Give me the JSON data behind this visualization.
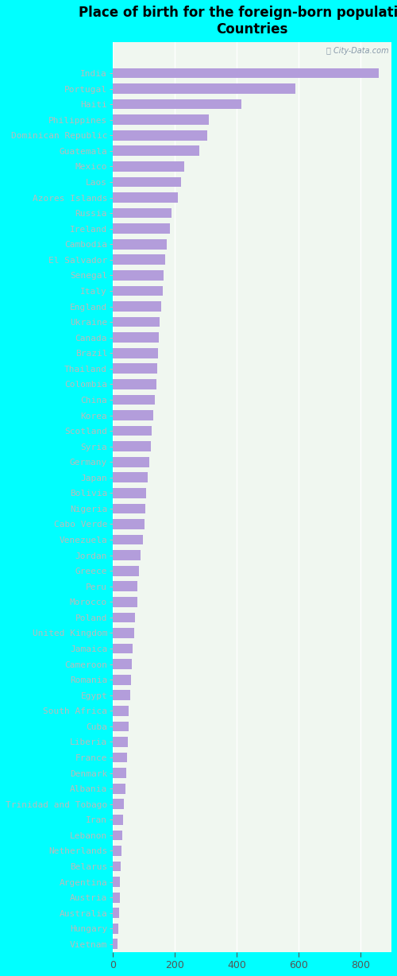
{
  "title": "Place of birth for the foreign-born population -\nCountries",
  "bar_color": "#b39ddb",
  "plot_bg": "#f0f7f0",
  "fig_bg": "#00ffff",
  "label_color": "#00aaaa",
  "categories": [
    "India",
    "Portugal",
    "Haiti",
    "Philippines",
    "Dominican Republic",
    "Guatemala",
    "Mexico",
    "Laos",
    "Azores Islands",
    "Russia",
    "Ireland",
    "Cambodia",
    "El Salvador",
    "Senegal",
    "Italy",
    "England",
    "Ukraine",
    "Canada",
    "Brazil",
    "Thailand",
    "Colombia",
    "China",
    "Korea",
    "Scotland",
    "Syria",
    "Germany",
    "Japan",
    "Bolivia",
    "Nigeria",
    "Cabo Verde",
    "Venezuela",
    "Jordan",
    "Greece",
    "Peru",
    "Morocco",
    "Poland",
    "United Kingdom",
    "Jamaica",
    "Cameroon",
    "Romania",
    "Egypt",
    "South Africa",
    "Cuba",
    "Liberia",
    "France",
    "Denmark",
    "Albania",
    "Trinidad and Tobago",
    "Iran",
    "Lebanon",
    "Netherlands",
    "Belarus",
    "Argentina",
    "Austria",
    "Australia",
    "Hungary",
    "Vietnam"
  ],
  "values": [
    860,
    590,
    415,
    310,
    305,
    280,
    230,
    220,
    210,
    190,
    185,
    175,
    170,
    165,
    160,
    155,
    150,
    148,
    145,
    142,
    140,
    135,
    130,
    125,
    122,
    118,
    112,
    108,
    105,
    102,
    98,
    90,
    85,
    80,
    78,
    72,
    68,
    65,
    62,
    58,
    55,
    52,
    50,
    48,
    45,
    42,
    40,
    35,
    32,
    30,
    28,
    26,
    24,
    22,
    20,
    18,
    15
  ],
  "xlim": [
    0,
    900
  ],
  "xticks": [
    0,
    200,
    400,
    600,
    800
  ],
  "watermark": "ⓘ City-Data.com",
  "title_fontsize": 12,
  "label_fontsize": 8,
  "tick_fontsize": 9
}
